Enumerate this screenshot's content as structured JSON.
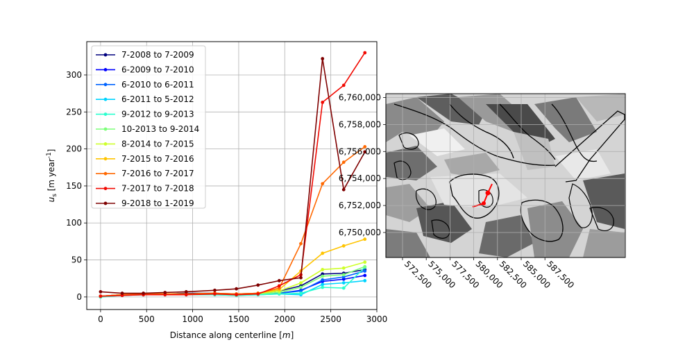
{
  "chart_data": [
    {
      "type": "line",
      "xlabel_main": "Distance along centerline ",
      "xlabel_unit": "m",
      "ylabel_sym": "u",
      "ylabel_sub": "s",
      "ylabel_unit": "m year",
      "ylabel_exp": "-1",
      "xlim": [
        -150,
        3000
      ],
      "ylim": [
        -17,
        345
      ],
      "xticks": [
        0,
        500,
        1000,
        1500,
        2000,
        2500,
        3000
      ],
      "yticks": [
        0,
        50,
        100,
        150,
        200,
        250,
        300
      ],
      "grid": true,
      "legend_position": "upper-left",
      "x": [
        0,
        235,
        465,
        700,
        930,
        1240,
        1475,
        1710,
        1940,
        2175,
        2410,
        2640,
        2870
      ],
      "series": [
        {
          "name": "7-2008 to 7-2009",
          "color": "#00007f",
          "values": [
            1,
            3,
            4,
            4,
            5,
            5,
            4,
            5,
            8,
            15,
            31,
            32,
            37
          ]
        },
        {
          "name": "6-2009 to 7-2010",
          "color": "#0000ff",
          "values": [
            1,
            3,
            3,
            4,
            4,
            4,
            3,
            4,
            5,
            9,
            21,
            24,
            29
          ]
        },
        {
          "name": "6-2010 to 6-2011",
          "color": "#0063ff",
          "values": [
            1,
            3,
            4,
            4,
            4,
            4,
            3,
            4,
            5,
            8,
            23,
            27,
            35
          ]
        },
        {
          "name": "6-2011 to 5-2012",
          "color": "#00d4ff",
          "values": [
            0,
            2,
            3,
            3,
            3,
            3,
            2,
            3,
            4,
            3,
            17,
            19,
            22
          ]
        },
        {
          "name": "9-2012 to 9-2013",
          "color": "#29ffce",
          "values": [
            0,
            2,
            3,
            3,
            3,
            3,
            2,
            3,
            4,
            5,
            13,
            12,
            40
          ]
        },
        {
          "name": "10-2013 to 9-2014",
          "color": "#7dff7a",
          "values": [
            1,
            3,
            3,
            4,
            4,
            4,
            3,
            4,
            6,
            13,
            28,
            30,
            41
          ]
        },
        {
          "name": "8-2014 to 7-2015",
          "color": "#ceff29",
          "values": [
            1,
            3,
            4,
            4,
            4,
            5,
            3,
            5,
            8,
            19,
            37,
            39,
            47
          ]
        },
        {
          "name": "7-2015 to 7-2016",
          "color": "#ffc400",
          "values": [
            1,
            3,
            4,
            4,
            4,
            5,
            4,
            5,
            10,
            35,
            59,
            69,
            78
          ]
        },
        {
          "name": "7-2016 to 7-2017",
          "color": "#ff6800",
          "values": [
            1,
            3,
            4,
            4,
            4,
            5,
            4,
            5,
            12,
            72,
            153,
            182,
            203
          ]
        },
        {
          "name": "7-2017 to 7-2018",
          "color": "#f10800",
          "values": [
            1,
            2,
            3,
            3,
            3,
            4,
            3,
            4,
            15,
            30,
            263,
            286,
            330
          ]
        },
        {
          "name": "9-2018 to 1-2019",
          "color": "#7f0000",
          "values": [
            7,
            5,
            5,
            6,
            7,
            9,
            11,
            16,
            22,
            26,
            322,
            145,
            196
          ]
        }
      ]
    },
    {
      "type": "map",
      "xticks": [
        "572,500",
        "575,000",
        "577,500",
        "580,000",
        "582,500",
        "585,000",
        "587,500"
      ],
      "yticks": [
        "6,750,000",
        "6,752,000",
        "6,754,000",
        "6,756,000",
        "6,758,000",
        "6,760,000"
      ],
      "grid": true,
      "marker_color": "#ff0000"
    }
  ]
}
